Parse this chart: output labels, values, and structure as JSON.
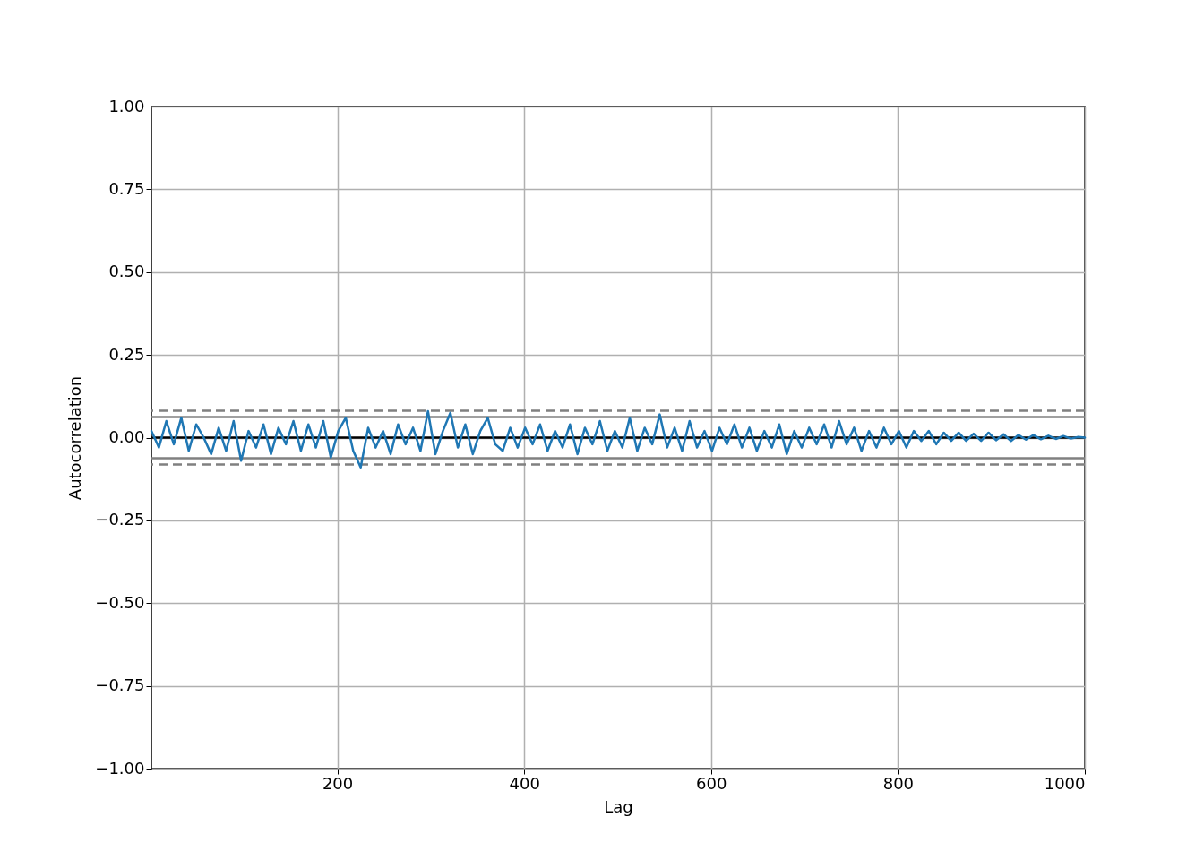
{
  "chart_data": {
    "type": "line",
    "xlabel": "Lag",
    "ylabel": "Autocorrelation",
    "x": [
      1,
      9,
      17,
      25,
      33,
      41,
      49,
      57,
      65,
      73,
      81,
      89,
      97,
      105,
      113,
      121,
      129,
      137,
      145,
      153,
      161,
      169,
      177,
      185,
      193,
      201,
      209,
      217,
      225,
      233,
      241,
      249,
      257,
      265,
      273,
      281,
      289,
      297,
      305,
      313,
      321,
      329,
      337,
      345,
      353,
      361,
      369,
      377,
      385,
      393,
      401,
      409,
      417,
      425,
      433,
      441,
      449,
      457,
      465,
      473,
      481,
      489,
      497,
      505,
      513,
      521,
      529,
      537,
      545,
      553,
      561,
      569,
      577,
      585,
      593,
      601,
      609,
      617,
      625,
      633,
      641,
      649,
      657,
      665,
      673,
      681,
      689,
      697,
      705,
      713,
      721,
      729,
      737,
      745,
      753,
      761,
      769,
      777,
      785,
      793,
      801,
      809,
      817,
      825,
      833,
      841,
      849,
      857,
      865,
      873,
      881,
      889,
      897,
      905,
      913,
      921,
      929,
      937,
      945,
      953,
      961,
      969,
      977,
      985,
      993,
      1000
    ],
    "series": [
      {
        "color": "#1f77b4",
        "values": [
          0.02,
          -0.03,
          0.05,
          -0.02,
          0.06,
          -0.04,
          0.04,
          0.0,
          -0.05,
          0.03,
          -0.04,
          0.05,
          -0.07,
          0.02,
          -0.03,
          0.04,
          -0.05,
          0.03,
          -0.02,
          0.05,
          -0.04,
          0.04,
          -0.03,
          0.05,
          -0.06,
          0.02,
          0.06,
          -0.04,
          -0.09,
          0.03,
          -0.03,
          0.02,
          -0.05,
          0.04,
          -0.02,
          0.03,
          -0.04,
          0.08,
          -0.05,
          0.02,
          0.075,
          -0.03,
          0.04,
          -0.05,
          0.02,
          0.06,
          -0.02,
          -0.04,
          0.03,
          -0.03,
          0.03,
          -0.02,
          0.04,
          -0.04,
          0.02,
          -0.03,
          0.04,
          -0.05,
          0.03,
          -0.02,
          0.05,
          -0.04,
          0.02,
          -0.03,
          0.06,
          -0.04,
          0.03,
          -0.02,
          0.07,
          -0.03,
          0.03,
          -0.04,
          0.05,
          -0.03,
          0.02,
          -0.04,
          0.03,
          -0.02,
          0.04,
          -0.03,
          0.03,
          -0.04,
          0.02,
          -0.03,
          0.04,
          -0.05,
          0.02,
          -0.03,
          0.03,
          -0.02,
          0.04,
          -0.03,
          0.05,
          -0.02,
          0.03,
          -0.04,
          0.02,
          -0.03,
          0.03,
          -0.02,
          0.02,
          -0.03,
          0.02,
          -0.01,
          0.02,
          -0.02,
          0.015,
          -0.01,
          0.015,
          -0.01,
          0.012,
          -0.01,
          0.015,
          -0.008,
          0.01,
          -0.01,
          0.008,
          -0.006,
          0.008,
          -0.005,
          0.006,
          -0.004,
          0.005,
          -0.003,
          0.002,
          0.0
        ]
      }
    ],
    "xlim": [
      1,
      1000
    ],
    "xticks": [
      200,
      400,
      600,
      800,
      1000
    ],
    "ylim": [
      -1,
      1
    ],
    "yticks": [
      {
        "value": -1,
        "label": "−1.00"
      },
      {
        "value": -0.75,
        "label": "−0.75"
      },
      {
        "value": -0.5,
        "label": "−0.50"
      },
      {
        "value": -0.25,
        "label": "−0.25"
      },
      {
        "value": 0,
        "label": "0.00"
      },
      {
        "value": 0.25,
        "label": "0.25"
      },
      {
        "value": 0.5,
        "label": "0.50"
      },
      {
        "value": 0.75,
        "label": "0.75"
      },
      {
        "value": 1,
        "label": "1.00"
      }
    ],
    "grid": true,
    "legend": false,
    "marker": "none",
    "line_style": "solid",
    "ref_lines": [
      {
        "axis": "y",
        "value": 0,
        "color": "#000000",
        "line_style": "solid"
      },
      {
        "axis": "y",
        "value": 0.062,
        "color": "#808080",
        "line_style": "solid"
      },
      {
        "axis": "y",
        "value": -0.062,
        "color": "#808080",
        "line_style": "solid"
      },
      {
        "axis": "y",
        "value": 0.081,
        "color": "#808080",
        "line_style": "dashed"
      },
      {
        "axis": "y",
        "value": -0.081,
        "color": "#808080",
        "line_style": "dashed"
      }
    ]
  }
}
